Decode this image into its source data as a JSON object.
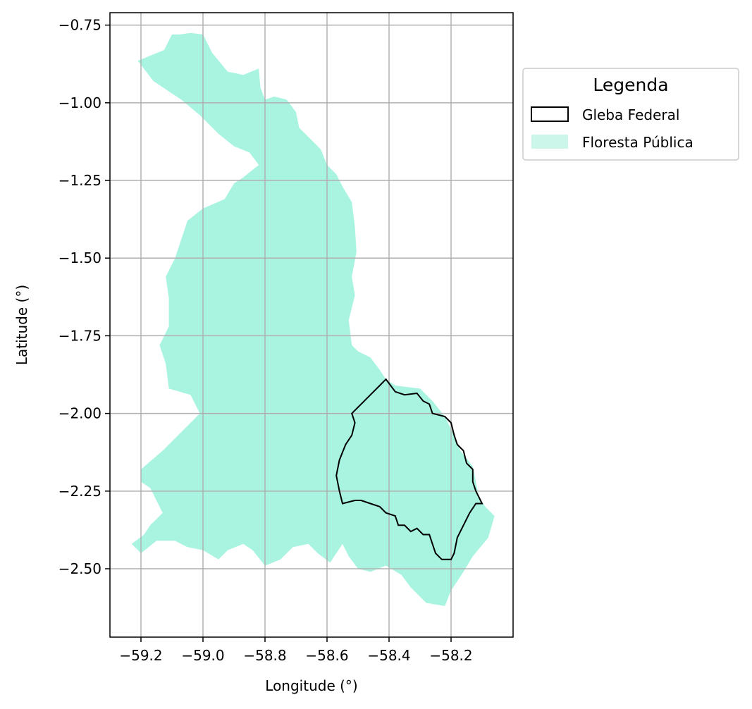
{
  "map": {
    "xlabel": "Longitude (°)",
    "ylabel": "Latitude (°)",
    "xlim": [
      -59.3,
      -58.0
    ],
    "ylim": [
      -2.72,
      -0.71
    ],
    "x_ticks": [
      {
        "value": -59.2,
        "label": "−59.2"
      },
      {
        "value": -59.0,
        "label": "−59.0"
      },
      {
        "value": -58.8,
        "label": "−58.8"
      },
      {
        "value": -58.6,
        "label": "−58.6"
      },
      {
        "value": -58.4,
        "label": "−58.4"
      },
      {
        "value": -58.2,
        "label": "−58.2"
      }
    ],
    "y_ticks": [
      {
        "value": -0.75,
        "label": "−0.75"
      },
      {
        "value": -1.0,
        "label": "−1.00"
      },
      {
        "value": -1.25,
        "label": "−1.25"
      },
      {
        "value": -1.5,
        "label": "−1.50"
      },
      {
        "value": -1.75,
        "label": "−1.75"
      },
      {
        "value": -2.0,
        "label": "−2.00"
      },
      {
        "value": -2.25,
        "label": "−2.25"
      },
      {
        "value": -2.5,
        "label": "−2.50"
      }
    ],
    "grid": true,
    "legend": {
      "title": "Legenda",
      "placement": "outside-top-right",
      "items": [
        {
          "label": "Gleba Federal",
          "style": "outline",
          "color": "#000000"
        },
        {
          "label": "Floresta Pública",
          "style": "fill",
          "color": "#a8f4e0"
        }
      ]
    },
    "layers": {
      "floresta_publica": {
        "color": "#a8f4e0",
        "polygon": [
          [
            -59.21,
            -0.865
          ],
          [
            -59.125,
            -0.83
          ],
          [
            -59.1,
            -0.78
          ],
          [
            -59.075,
            -0.78
          ],
          [
            -59.04,
            -0.775
          ],
          [
            -59.0,
            -0.78
          ],
          [
            -58.97,
            -0.84
          ],
          [
            -58.92,
            -0.9
          ],
          [
            -58.87,
            -0.91
          ],
          [
            -58.82,
            -0.89
          ],
          [
            -58.815,
            -0.95
          ],
          [
            -58.8,
            -0.99
          ],
          [
            -58.77,
            -0.98
          ],
          [
            -58.73,
            -0.99
          ],
          [
            -58.7,
            -1.03
          ],
          [
            -58.69,
            -1.08
          ],
          [
            -58.65,
            -1.12
          ],
          [
            -58.62,
            -1.15
          ],
          [
            -58.6,
            -1.2
          ],
          [
            -58.57,
            -1.23
          ],
          [
            -58.55,
            -1.27
          ],
          [
            -58.52,
            -1.32
          ],
          [
            -58.51,
            -1.4
          ],
          [
            -58.505,
            -1.48
          ],
          [
            -58.52,
            -1.56
          ],
          [
            -58.51,
            -1.62
          ],
          [
            -58.53,
            -1.7
          ],
          [
            -58.52,
            -1.78
          ],
          [
            -58.5,
            -1.8
          ],
          [
            -58.46,
            -1.82
          ],
          [
            -58.43,
            -1.86
          ],
          [
            -58.41,
            -1.89
          ],
          [
            -58.38,
            -1.91
          ],
          [
            -58.3,
            -1.92
          ],
          [
            -58.26,
            -1.96
          ],
          [
            -58.22,
            -2.01
          ],
          [
            -58.19,
            -2.07
          ],
          [
            -58.17,
            -2.12
          ],
          [
            -58.13,
            -2.17
          ],
          [
            -58.12,
            -2.22
          ],
          [
            -58.11,
            -2.27
          ],
          [
            -58.09,
            -2.3
          ],
          [
            -58.06,
            -2.33
          ],
          [
            -58.08,
            -2.4
          ],
          [
            -58.13,
            -2.46
          ],
          [
            -58.16,
            -2.51
          ],
          [
            -58.2,
            -2.57
          ],
          [
            -58.22,
            -2.62
          ],
          [
            -58.28,
            -2.61
          ],
          [
            -58.33,
            -2.56
          ],
          [
            -58.36,
            -2.52
          ],
          [
            -58.41,
            -2.49
          ],
          [
            -58.46,
            -2.51
          ],
          [
            -58.5,
            -2.5
          ],
          [
            -58.53,
            -2.46
          ],
          [
            -58.55,
            -2.42
          ],
          [
            -58.59,
            -2.48
          ],
          [
            -58.63,
            -2.45
          ],
          [
            -58.66,
            -2.42
          ],
          [
            -58.71,
            -2.43
          ],
          [
            -58.75,
            -2.47
          ],
          [
            -58.8,
            -2.49
          ],
          [
            -58.84,
            -2.44
          ],
          [
            -58.87,
            -2.42
          ],
          [
            -58.92,
            -2.44
          ],
          [
            -58.95,
            -2.47
          ],
          [
            -59.0,
            -2.44
          ],
          [
            -59.05,
            -2.43
          ],
          [
            -59.09,
            -2.41
          ],
          [
            -59.15,
            -2.41
          ],
          [
            -59.2,
            -2.45
          ],
          [
            -59.23,
            -2.42
          ],
          [
            -59.19,
            -2.39
          ],
          [
            -59.17,
            -2.36
          ],
          [
            -59.13,
            -2.32
          ],
          [
            -59.15,
            -2.28
          ],
          [
            -59.17,
            -2.24
          ],
          [
            -59.2,
            -2.22
          ],
          [
            -59.2,
            -2.18
          ],
          [
            -59.13,
            -2.12
          ],
          [
            -59.07,
            -2.06
          ],
          [
            -59.01,
            -2.0
          ],
          [
            -59.04,
            -1.94
          ],
          [
            -59.11,
            -1.92
          ],
          [
            -59.12,
            -1.84
          ],
          [
            -59.14,
            -1.78
          ],
          [
            -59.11,
            -1.72
          ],
          [
            -59.11,
            -1.63
          ],
          [
            -59.12,
            -1.56
          ],
          [
            -59.09,
            -1.5
          ],
          [
            -59.07,
            -1.44
          ],
          [
            -59.05,
            -1.38
          ],
          [
            -59.0,
            -1.34
          ],
          [
            -58.93,
            -1.31
          ],
          [
            -58.9,
            -1.26
          ],
          [
            -58.87,
            -1.24
          ],
          [
            -58.82,
            -1.2
          ],
          [
            -58.85,
            -1.16
          ],
          [
            -58.9,
            -1.14
          ],
          [
            -58.95,
            -1.1
          ],
          [
            -59.01,
            -1.04
          ],
          [
            -59.07,
            -0.99
          ],
          [
            -59.1,
            -0.97
          ],
          [
            -59.16,
            -0.93
          ]
        ]
      },
      "gleba_federal": {
        "color": "#000000",
        "polygon": [
          [
            -58.41,
            -1.89
          ],
          [
            -58.38,
            -1.93
          ],
          [
            -58.35,
            -1.94
          ],
          [
            -58.31,
            -1.935
          ],
          [
            -58.29,
            -1.96
          ],
          [
            -58.27,
            -1.97
          ],
          [
            -58.26,
            -2.0
          ],
          [
            -58.22,
            -2.01
          ],
          [
            -58.2,
            -2.03
          ],
          [
            -58.19,
            -2.07
          ],
          [
            -58.18,
            -2.1
          ],
          [
            -58.16,
            -2.12
          ],
          [
            -58.15,
            -2.16
          ],
          [
            -58.13,
            -2.18
          ],
          [
            -58.13,
            -2.22
          ],
          [
            -58.12,
            -2.25
          ],
          [
            -58.11,
            -2.27
          ],
          [
            -58.1,
            -2.29
          ],
          [
            -58.12,
            -2.29
          ],
          [
            -58.14,
            -2.32
          ],
          [
            -58.16,
            -2.36
          ],
          [
            -58.18,
            -2.4
          ],
          [
            -58.19,
            -2.45
          ],
          [
            -58.2,
            -2.47
          ],
          [
            -58.23,
            -2.47
          ],
          [
            -58.25,
            -2.45
          ],
          [
            -58.26,
            -2.42
          ],
          [
            -58.27,
            -2.39
          ],
          [
            -58.29,
            -2.39
          ],
          [
            -58.31,
            -2.37
          ],
          [
            -58.33,
            -2.38
          ],
          [
            -58.35,
            -2.36
          ],
          [
            -58.37,
            -2.36
          ],
          [
            -58.38,
            -2.33
          ],
          [
            -58.41,
            -2.32
          ],
          [
            -58.43,
            -2.3
          ],
          [
            -58.46,
            -2.29
          ],
          [
            -58.49,
            -2.28
          ],
          [
            -58.51,
            -2.28
          ],
          [
            -58.55,
            -2.29
          ],
          [
            -58.56,
            -2.25
          ],
          [
            -58.57,
            -2.2
          ],
          [
            -58.56,
            -2.15
          ],
          [
            -58.54,
            -2.1
          ],
          [
            -58.52,
            -2.07
          ],
          [
            -58.51,
            -2.03
          ],
          [
            -58.52,
            -2.0
          ],
          [
            -58.49,
            -1.97
          ],
          [
            -58.46,
            -1.94
          ],
          [
            -58.43,
            -1.91
          ]
        ]
      }
    }
  }
}
